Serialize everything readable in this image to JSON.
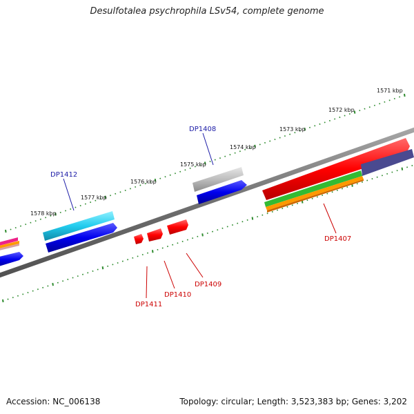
{
  "title": "Desulfotalea psychrophila LSv54, complete genome",
  "footer": {
    "accession": "Accession: NC_006138",
    "topology": "Topology: circular; Length: 3,523,383 bp; Genes: 3,202"
  },
  "ruler": {
    "labels": [
      "1571 kbp",
      "1572 kbp",
      "1573 kbp",
      "1574 kbp",
      "1575 kbp",
      "1576 kbp",
      "1577 kbp",
      "1578 kbp"
    ]
  },
  "genes": {
    "labels": [
      "DP1408",
      "DP1412",
      "DP1407",
      "DP1409",
      "DP1410",
      "DP1411"
    ]
  },
  "colors": {
    "backbone": "#7f7f7f",
    "tick": "#2e8b2e",
    "label_blue": "#1a1aa6",
    "label_red": "#cc0000",
    "gene_red": "#ff0000",
    "gene_blue": "#0000ee",
    "gene_cyan": "#22ccee",
    "gene_grey": "#b8b8b8",
    "gene_green": "#33bb33",
    "gene_orange": "#ff9900",
    "gene_slate": "#4a4a90",
    "gene_magenta": "#ee2288"
  }
}
